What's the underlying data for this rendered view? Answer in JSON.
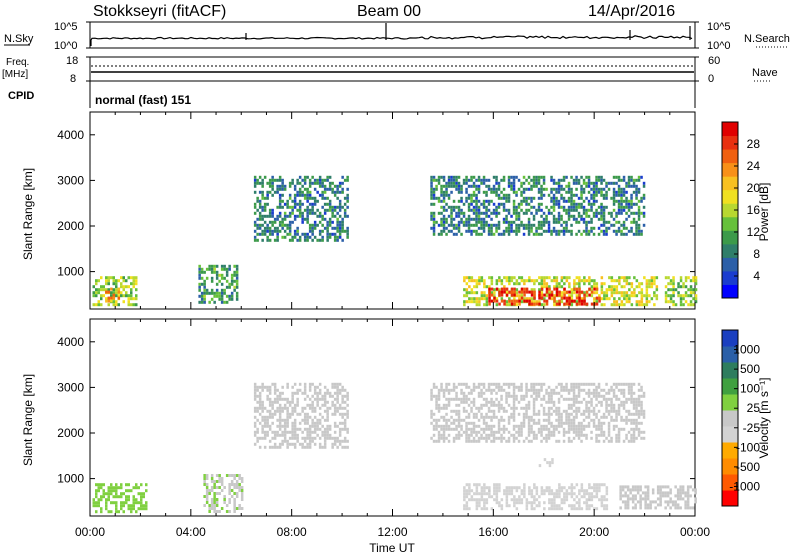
{
  "header": {
    "station": "Stokkseyri (fitACF)",
    "beam": "Beam 00",
    "date": "14/Apr/2016"
  },
  "top_panels": {
    "nsky_label": "N.Sky",
    "nsky_ticks": [
      "10^5",
      "10^0"
    ],
    "nsearch_label": "N.Search",
    "nsearch_ticks": [
      "10^5",
      "10^0"
    ],
    "freq_label": "Freq.",
    "freq_unit": "[MHz]",
    "freq_ticks": [
      "18",
      "8"
    ],
    "nave_label": "Nave",
    "nave_ticks": [
      "60",
      "0"
    ],
    "cpid_label": "CPID",
    "cpid_value": "normal (fast) 151"
  },
  "x_axis": {
    "label": "Time UT",
    "ticks": [
      "00:00",
      "04:00",
      "08:00",
      "12:00",
      "16:00",
      "20:00",
      "00:00"
    ]
  },
  "colorbars": {
    "power": {
      "label": "Power [dB]",
      "ticks": [
        "28",
        "24",
        "20",
        "16",
        "12",
        "8",
        "4"
      ],
      "colors": [
        "#0000ff",
        "#1a3ccf",
        "#2b5fa8",
        "#2f7e6a",
        "#3c9a4a",
        "#66c03a",
        "#b8d830",
        "#f0e020",
        "#f8c020",
        "#f89018",
        "#f06010",
        "#e83010",
        "#e00000"
      ]
    },
    "velocity": {
      "label": "Velocity [m s⁻¹]",
      "ticks": [
        "1000",
        "500",
        "100",
        "25",
        "-25",
        "-100",
        "-500",
        "-1000"
      ],
      "colors": [
        "#ff0000",
        "#ff5a00",
        "#ff8c00",
        "#ffaa00",
        "#d3d3d3",
        "#c8c8c8",
        "#80d040",
        "#40a040",
        "#2e7d5e",
        "#2a5fa8",
        "#1a3fc0"
      ]
    }
  },
  "chart_data": [
    {
      "type": "heatmap",
      "ylabel": "Slant Range [km]",
      "xlabel": "Time UT",
      "x_range_hours": [
        0,
        24
      ],
      "yticks": [
        1000,
        2000,
        3000,
        4000
      ],
      "ylim": [
        180,
        4500
      ],
      "colorbar": "Power [dB]",
      "colorbar_range": [
        0,
        30
      ],
      "regions": [
        {
          "t0": 0.1,
          "t1": 1.8,
          "r0": 300,
          "r1": 900,
          "value": 14
        },
        {
          "t0": 0.6,
          "t1": 1.2,
          "r0": 350,
          "r1": 650,
          "value": 22
        },
        {
          "t0": 4.3,
          "t1": 5.8,
          "r0": 300,
          "r1": 1150,
          "value": 10
        },
        {
          "t0": 6.5,
          "t1": 10.2,
          "r0": 1700,
          "r1": 3100,
          "value": 8
        },
        {
          "t0": 14.8,
          "t1": 22.5,
          "r0": 300,
          "r1": 900,
          "value": 16
        },
        {
          "t0": 15.8,
          "t1": 20.2,
          "r0": 320,
          "r1": 650,
          "value": 27
        },
        {
          "t0": 13.5,
          "t1": 22.0,
          "r0": 1800,
          "r1": 3100,
          "value": 8
        },
        {
          "t0": 22.8,
          "t1": 24.0,
          "r0": 300,
          "r1": 900,
          "value": 14
        }
      ]
    },
    {
      "type": "heatmap",
      "ylabel": "Slant Range [km]",
      "xlabel": "Time UT",
      "x_range_hours": [
        0,
        24
      ],
      "yticks": [
        1000,
        2000,
        3000,
        4000
      ],
      "ylim": [
        180,
        4500
      ],
      "colorbar": "Velocity [m s⁻¹]",
      "colorbar_range": [
        -1000,
        1000
      ],
      "regions": [
        {
          "t0": 0.1,
          "t1": 2.2,
          "r0": 300,
          "r1": 900,
          "value": 150
        },
        {
          "t0": 4.5,
          "t1": 6.0,
          "r0": 300,
          "r1": 1100,
          "value": 60
        },
        {
          "t0": 6.5,
          "t1": 10.2,
          "r0": 1700,
          "r1": 3100,
          "value": 0
        },
        {
          "t0": 14.8,
          "t1": 20.5,
          "r0": 320,
          "r1": 900,
          "value": -150
        },
        {
          "t0": 17.8,
          "t1": 18.3,
          "r0": 1300,
          "r1": 1450,
          "value": -150
        },
        {
          "t0": 13.5,
          "t1": 22.0,
          "r0": 1800,
          "r1": 3100,
          "value": 0
        },
        {
          "t0": 21.0,
          "t1": 24.0,
          "r0": 350,
          "r1": 850,
          "value": 0
        }
      ]
    }
  ]
}
